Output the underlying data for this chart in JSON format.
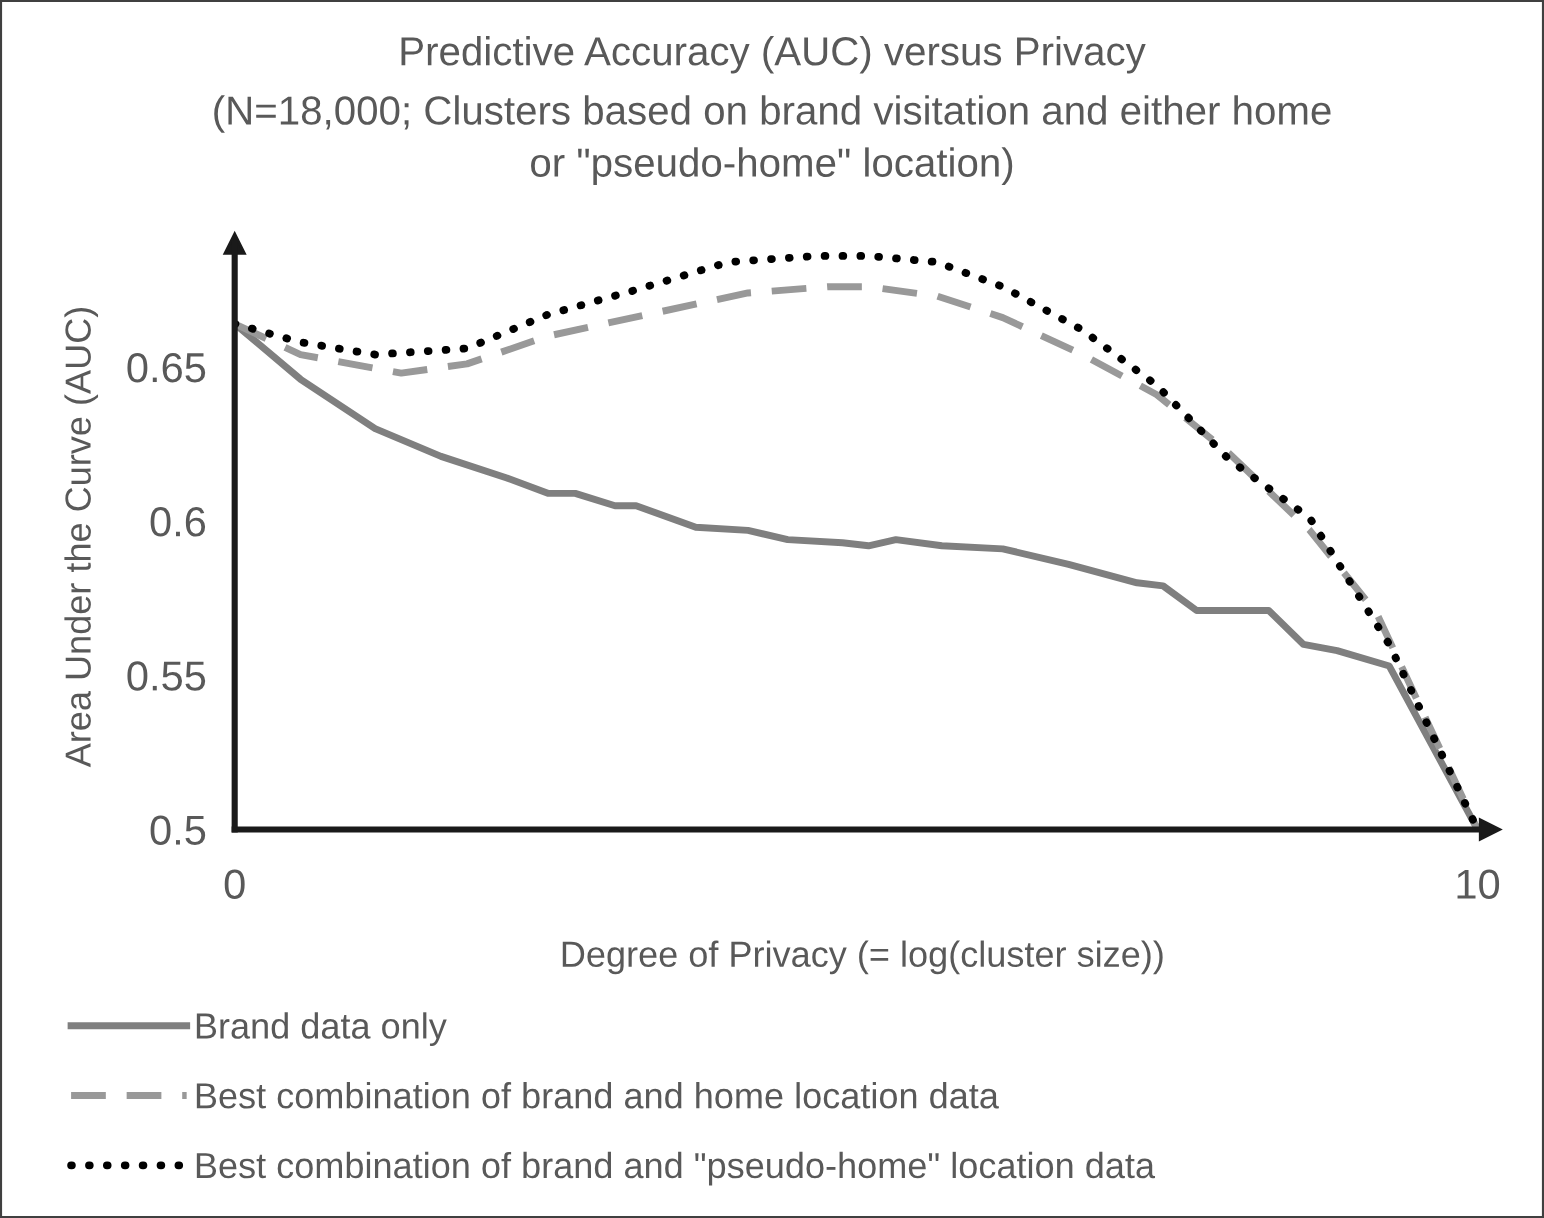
{
  "chart_data": {
    "type": "line",
    "title": "Predictive Accuracy (AUC) versus Privacy",
    "subtitle": "(N=18,000; Clusters based on brand visitation and either home\nor \"pseudo-home\" location)",
    "xlabel": "Degree of Privacy (= log(cluster size))",
    "ylabel": "Area Under the Curve (AUC)",
    "xlim": [
      0,
      10.1
    ],
    "xticks": [
      0,
      10
    ],
    "ylim": [
      0.5,
      0.69
    ],
    "yticks": [
      0.5,
      0.55,
      0.6,
      0.65
    ],
    "grid": false,
    "legend": "bottom",
    "series": [
      {
        "name": "Brand data only",
        "color": "#7f7f7f",
        "line_style": "solid",
        "x": [
          0,
          0.53,
          1.13,
          1.66,
          2.19,
          2.52,
          2.74,
          3.06,
          3.23,
          3.71,
          4.13,
          4.45,
          4.89,
          5.1,
          5.32,
          5.69,
          6.18,
          6.71,
          7.26,
          7.47,
          7.74,
          8.32,
          8.6,
          8.87,
          9.29,
          10
        ],
        "values": [
          0.664,
          0.646,
          0.63,
          0.621,
          0.614,
          0.609,
          0.609,
          0.605,
          0.605,
          0.598,
          0.597,
          0.594,
          0.593,
          0.592,
          0.594,
          0.592,
          0.591,
          0.586,
          0.58,
          0.579,
          0.571,
          0.571,
          0.56,
          0.558,
          0.553,
          0.5
        ]
      },
      {
        "name": "Best combination of brand and home location data",
        "color": "#999999",
        "line_style": "dashed",
        "x": [
          0,
          0.53,
          1.34,
          1.87,
          2.52,
          3.32,
          4.13,
          4.77,
          5.1,
          5.65,
          6.18,
          6.82,
          7.42,
          8.0,
          8.65,
          9.19,
          10
        ],
        "values": [
          0.664,
          0.654,
          0.648,
          0.651,
          0.66,
          0.667,
          0.674,
          0.676,
          0.676,
          0.673,
          0.666,
          0.654,
          0.641,
          0.622,
          0.597,
          0.57,
          0.5
        ]
      },
      {
        "name": "Best combination of brand and \"pseudo-home\" location data",
        "color": "#000000",
        "line_style": "dotted",
        "x": [
          0,
          0.53,
          1.13,
          1.87,
          2.52,
          3.23,
          3.97,
          4.68,
          5.1,
          5.65,
          6.18,
          6.82,
          7.42,
          8.0,
          8.65,
          9.29,
          10
        ],
        "values": [
          0.664,
          0.658,
          0.654,
          0.656,
          0.667,
          0.675,
          0.684,
          0.686,
          0.686,
          0.684,
          0.676,
          0.662,
          0.644,
          0.62,
          0.601,
          0.56,
          0.5
        ]
      }
    ]
  }
}
